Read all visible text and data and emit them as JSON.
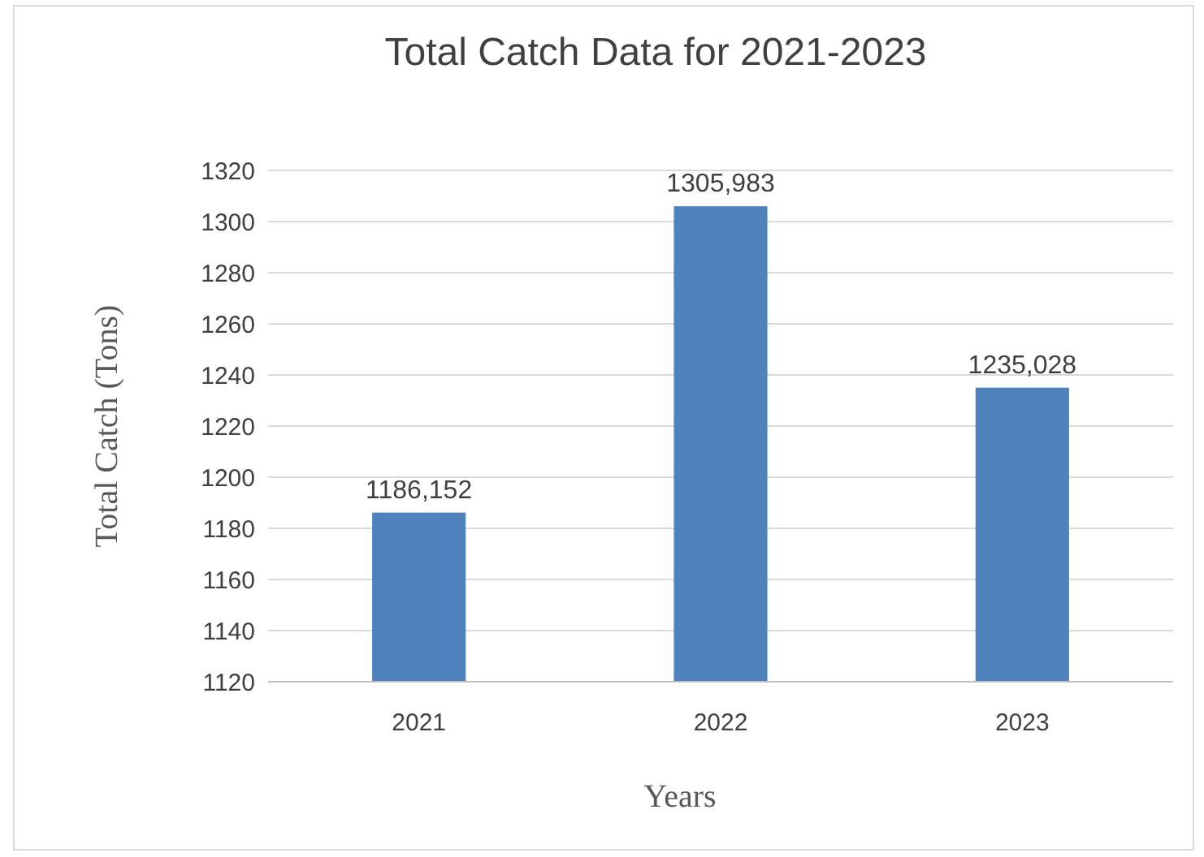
{
  "chart_data": {
    "type": "bar",
    "title": "Total Catch Data for 2021-2023",
    "xlabel": "Years",
    "ylabel": "Total Catch (Tons)",
    "categories": [
      "2021",
      "2022",
      "2023"
    ],
    "values": [
      1186.152,
      1305.983,
      1235.028
    ],
    "value_labels": [
      "1186,152",
      "1305,983",
      "1235,028"
    ],
    "color": "#4f81bd",
    "ylim": [
      1120,
      1320
    ],
    "yticks": [
      1120,
      1140,
      1160,
      1180,
      1200,
      1220,
      1240,
      1260,
      1280,
      1300,
      1320
    ],
    "grid": "y"
  }
}
